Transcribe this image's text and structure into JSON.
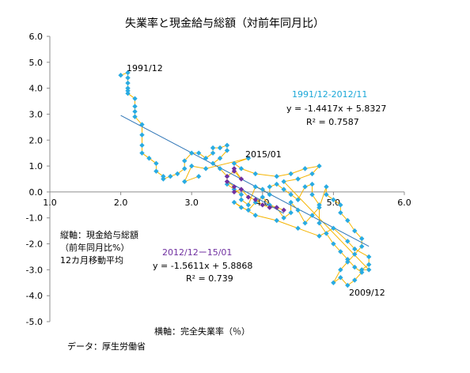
{
  "chart_data": {
    "type": "scatter",
    "title": "失業率と現金給与総額（対前年同月比）",
    "xlim": [
      1.0,
      6.0
    ],
    "ylim": [
      -5.0,
      6.0
    ],
    "x_ticks": [
      "1.0",
      "2.0",
      "3.0",
      "4.0",
      "5.0",
      "6.0"
    ],
    "y_ticks": [
      "6.0",
      "5.0",
      "4.0",
      "3.0",
      "2.0",
      "1.0",
      "0.0",
      "-1.0",
      "-2.0",
      "-3.0",
      "-4.0",
      "-5.0"
    ],
    "grid": false,
    "colors": {
      "series_a_marker": "#29abe2",
      "series_b_marker": "#7030a0",
      "connector": "#f5b400",
      "trendline": "#2e75b6",
      "axis": "#8c8c8c"
    },
    "series": [
      {
        "label": "1991/12-2012/11",
        "points": [
          [
            2.0,
            4.5
          ],
          [
            2.1,
            4.6
          ],
          [
            2.1,
            4.4
          ],
          [
            2.1,
            4.2
          ],
          [
            2.1,
            4.0
          ],
          [
            2.1,
            3.9
          ],
          [
            2.1,
            3.8
          ],
          [
            2.2,
            3.6
          ],
          [
            2.2,
            3.3
          ],
          [
            2.2,
            3.1
          ],
          [
            2.2,
            2.9
          ],
          [
            2.3,
            2.6
          ],
          [
            2.3,
            2.2
          ],
          [
            2.3,
            1.8
          ],
          [
            2.3,
            1.5
          ],
          [
            2.4,
            1.3
          ],
          [
            2.5,
            1.1
          ],
          [
            2.5,
            0.8
          ],
          [
            2.6,
            0.6
          ],
          [
            2.6,
            0.5
          ],
          [
            2.7,
            0.6
          ],
          [
            2.8,
            0.7
          ],
          [
            2.9,
            0.9
          ],
          [
            2.9,
            1.2
          ],
          [
            3.0,
            1.5
          ],
          [
            3.1,
            1.5
          ],
          [
            3.2,
            1.3
          ],
          [
            3.3,
            1.5
          ],
          [
            3.3,
            1.7
          ],
          [
            3.4,
            1.7
          ],
          [
            3.5,
            1.8
          ],
          [
            3.5,
            1.6
          ],
          [
            3.4,
            1.3
          ],
          [
            3.3,
            1.1
          ],
          [
            3.4,
            0.9
          ],
          [
            3.5,
            0.6
          ],
          [
            3.5,
            0.3
          ],
          [
            3.6,
            0.1
          ],
          [
            3.7,
            -0.1
          ],
          [
            3.7,
            -0.3
          ],
          [
            3.8,
            -0.5
          ],
          [
            3.9,
            0.2
          ],
          [
            4.0,
            0.1
          ],
          [
            4.1,
            -0.1
          ],
          [
            4.1,
            0.2
          ],
          [
            4.2,
            0.3
          ],
          [
            4.3,
            0.1
          ],
          [
            4.4,
            -0.1
          ],
          [
            4.5,
            -0.3
          ],
          [
            4.6,
            0.2
          ],
          [
            4.7,
            0.3
          ],
          [
            4.7,
            -0.1
          ],
          [
            4.8,
            -0.5
          ],
          [
            4.8,
            -1.2
          ],
          [
            4.9,
            -1.6
          ],
          [
            5.0,
            -2.0
          ],
          [
            5.1,
            -2.3
          ],
          [
            5.2,
            -2.6
          ],
          [
            5.3,
            -2.9
          ],
          [
            5.4,
            -3.1
          ],
          [
            5.3,
            -3.4
          ],
          [
            5.2,
            -3.6
          ],
          [
            5.1,
            -3.3
          ],
          [
            5.0,
            -3.5
          ],
          [
            5.1,
            -3.0
          ],
          [
            5.2,
            -2.7
          ],
          [
            5.3,
            -2.4
          ],
          [
            5.4,
            -2.1
          ],
          [
            5.4,
            -1.8
          ],
          [
            5.3,
            -1.5
          ],
          [
            5.2,
            -1.1
          ],
          [
            5.1,
            -0.8
          ],
          [
            5.1,
            -0.5
          ],
          [
            5.0,
            -0.3
          ],
          [
            4.9,
            -0.1
          ],
          [
            4.9,
            0.2
          ],
          [
            4.8,
            -0.6
          ],
          [
            4.7,
            -0.9
          ],
          [
            4.6,
            -1.2
          ],
          [
            4.5,
            -0.7
          ],
          [
            4.4,
            -0.4
          ],
          [
            4.4,
            -0.8
          ],
          [
            4.3,
            -1.0
          ],
          [
            4.2,
            -0.6
          ],
          [
            4.1,
            -0.5
          ],
          [
            4.0,
            -0.2
          ],
          [
            3.9,
            -0.4
          ],
          [
            3.8,
            -0.7
          ],
          [
            3.7,
            -0.6
          ],
          [
            3.6,
            -0.4
          ],
          [
            3.9,
            -0.9
          ],
          [
            4.2,
            -1.1
          ],
          [
            4.5,
            -1.4
          ],
          [
            4.8,
            -1.7
          ],
          [
            5.0,
            -1.4
          ],
          [
            5.2,
            -1.9
          ],
          [
            5.3,
            -2.2
          ],
          [
            5.5,
            -2.5
          ],
          [
            5.5,
            -2.8
          ],
          [
            5.4,
            -3.0
          ],
          [
            5.5,
            -3.0
          ],
          [
            4.3,
            0.4
          ],
          [
            4.5,
            0.5
          ],
          [
            4.7,
            0.7
          ],
          [
            4.8,
            1.0
          ],
          [
            4.6,
            0.9
          ],
          [
            4.4,
            0.7
          ],
          [
            4.2,
            0.6
          ],
          [
            3.9,
            0.7
          ],
          [
            3.7,
            0.9
          ],
          [
            3.6,
            1.1
          ],
          [
            3.8,
            1.3
          ],
          [
            3.2,
            0.9
          ],
          [
            3.0,
            1.0
          ],
          [
            2.9,
            0.4
          ],
          [
            3.1,
            0.6
          ]
        ]
      },
      {
        "label": "2012/12ー15/01",
        "points": [
          [
            4.3,
            -0.7
          ],
          [
            4.2,
            -0.6
          ],
          [
            4.1,
            -0.6
          ],
          [
            4.0,
            -0.5
          ],
          [
            3.9,
            -0.3
          ],
          [
            3.8,
            -0.2
          ],
          [
            3.7,
            0.1
          ],
          [
            3.6,
            0.0
          ],
          [
            3.6,
            0.2
          ],
          [
            3.5,
            0.4
          ],
          [
            3.5,
            0.6
          ],
          [
            3.6,
            0.8
          ],
          [
            3.7,
            0.5
          ],
          [
            3.6,
            0.9
          ]
        ]
      }
    ],
    "trendlines": [
      {
        "equation": "y = -1.4417x + 5.8327",
        "r2": "R² = 0.7587",
        "slope": -1.4417,
        "intercept": 5.8327,
        "x_range": [
          2.0,
          5.5
        ]
      },
      {
        "equation": "y = -1.5611x + 5.8868",
        "r2": "R² = 0.739",
        "slope": -1.5611,
        "intercept": 5.8868,
        "x_range": [
          3.5,
          4.3
        ]
      }
    ],
    "annotations": {
      "start": "1991/12",
      "recent": "2015/01",
      "trough": "2009/12",
      "series_a_label": "1991/12-2012/11",
      "series_b_label": "2012/12ー15/01"
    },
    "notes": {
      "y_axis_line1": "縦軸：現金給与総額",
      "y_axis_line2": "（前年同月比%）",
      "y_axis_line3": "12カ月移動平均",
      "x_axis": "横軸：完全失業率（％）",
      "source": "データ：厚生労働省"
    }
  }
}
